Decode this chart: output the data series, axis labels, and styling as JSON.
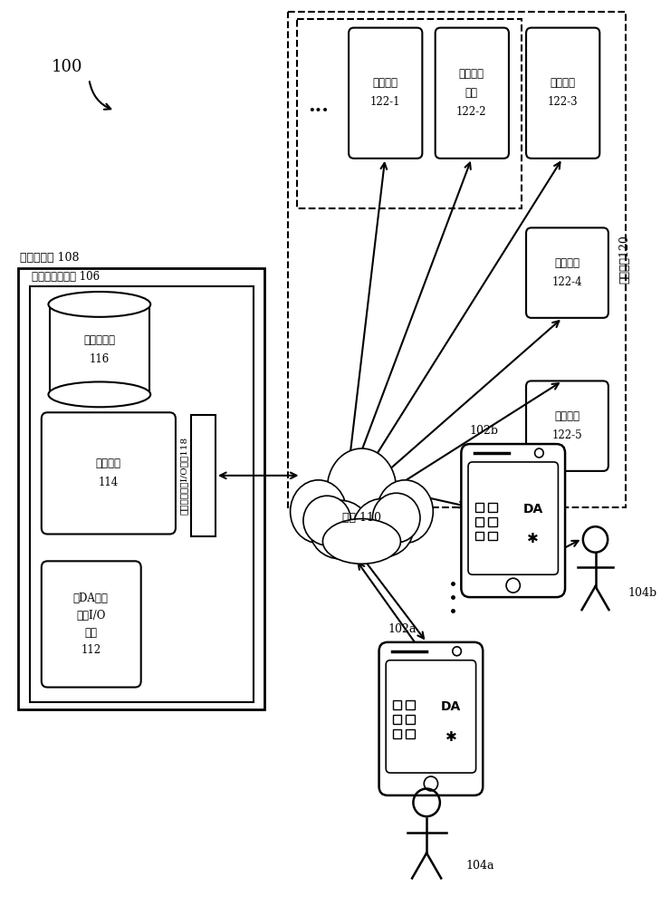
{
  "bg_color": "#ffffff",
  "fig_label": "100",
  "server_system_label": "服务器系统 108",
  "da_server_label": "数字助理服务器 106",
  "da_client_io_label": "至DA客户\n端的I/O\n接口\n112",
  "processing_module_label": "处理模块\n114",
  "data_model_label": "数据和模型\n116",
  "io_interface_label": "至外部服务的I/O接口118",
  "network_label": "网络 110",
  "external_service_label": "外部服务120",
  "svc1_label": "导航服务\n122-1",
  "svc2_label": "消息发送\n服务\n122-2",
  "svc3_label": "信息服务\n122-3",
  "svc4_label": "日历服务\n122-4",
  "svc5_label": "电话服务\n122-5",
  "dots_label": "...",
  "device_a_label": "102a",
  "device_b_label": "102b",
  "da_label": "DA",
  "user_a_label": "104a",
  "user_b_label": "104b"
}
